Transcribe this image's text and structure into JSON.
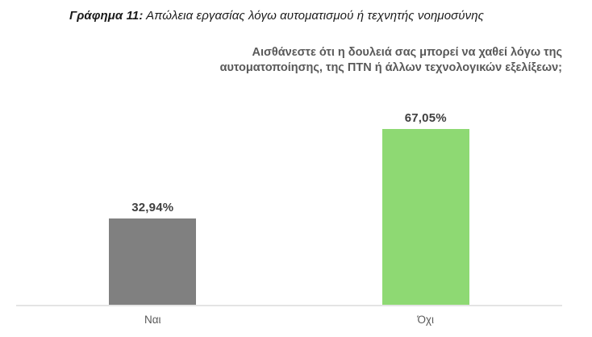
{
  "page": {
    "background": "#ffffff"
  },
  "caption": {
    "prefix": "Γράφημα 11:",
    "text": " Απώλεια εργασίας λόγω αυτοματισμού ή τεχνητής νοημοσύνης"
  },
  "subtitle": {
    "line1": "Αισθάνεστε ότι η δουλειά σας μπορεί να χαθεί λόγω της",
    "line2": "αυτοματοποίησης, της ΠΤΝ ή άλλων τεχνολογικών εξελίξεων;"
  },
  "chart_data": {
    "type": "bar",
    "title": "Αισθάνεστε ότι η δουλειά σας μπορεί να χαθεί λόγω της αυτοματοποίησης, της ΠΤΝ ή άλλων τεχνολογικών εξελίξεων;",
    "categories": [
      "Ναι",
      "Όχι"
    ],
    "values": [
      32.94,
      67.05
    ],
    "value_labels": [
      "32,94%",
      "67,05%"
    ],
    "bar_colors": [
      "#808080",
      "#8ed973"
    ],
    "xlabel": "",
    "ylabel": "",
    "ylim": [
      0,
      100
    ],
    "grid": false,
    "legend": false,
    "axis_line_color": "#e4e4e4",
    "value_label_color": "#3f3f3f",
    "category_label_color": "#595959"
  }
}
